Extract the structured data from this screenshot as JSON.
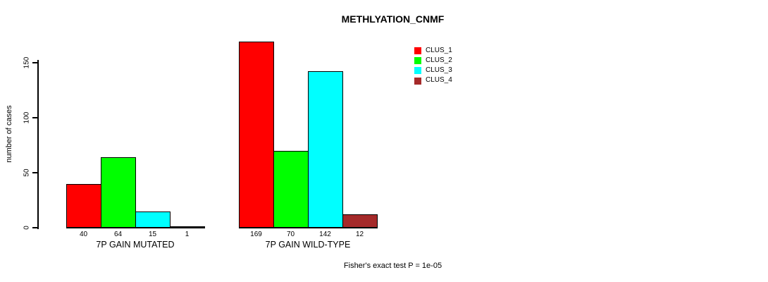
{
  "chart_data": {
    "type": "bar",
    "title": "METHLYATION_CNMF",
    "ylabel": "number of cases",
    "yticks": [
      0,
      50,
      100,
      150
    ],
    "ylim": [
      0,
      150
    ],
    "grid": false,
    "legend_position": "top-right-inside",
    "categories": [
      "CLUS_1",
      "CLUS_2",
      "CLUS_3",
      "CLUS_4"
    ],
    "colors": [
      "#ff0000",
      "#00ff00",
      "#00ffff",
      "#a52a2a"
    ],
    "groups": [
      {
        "label": "7P GAIN MUTATED",
        "values": [
          40,
          64,
          15,
          1
        ]
      },
      {
        "label": "7P GAIN WILD-TYPE",
        "values": [
          169,
          70,
          142,
          12
        ]
      }
    ],
    "footnote": "Fisher's exact test P = 1e-05",
    "text_color": "#000000",
    "background_color": "#ffffff"
  }
}
